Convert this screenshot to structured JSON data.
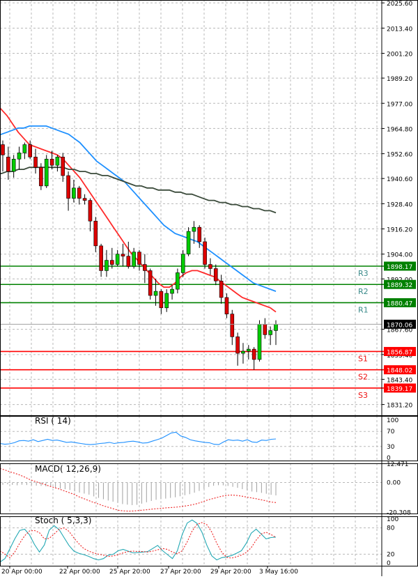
{
  "chart_data": {
    "type": "candlestick",
    "price_axis": {
      "ticks": [
        "2025.60",
        "2013.40",
        "2001.20",
        "1989.20",
        "1977.00",
        "1964.80",
        "1952.60",
        "1940.60",
        "1928.40",
        "1916.20",
        "1904.00",
        "1892.00",
        "1867.60",
        "1855.40",
        "1843.40",
        "1831.20"
      ],
      "ylim": [
        1826,
        2027
      ],
      "current_price": "1870.06",
      "current_value": 1870.06
    },
    "time_axis": {
      "labels": [
        "20 Apr 00:00",
        "22 Apr 00:00",
        "25 Apr 20:00",
        "27 Apr 20:00",
        "29 Apr 20:00",
        "3 May 16:00"
      ]
    },
    "levels": [
      {
        "name": "R3",
        "value": 1898.17,
        "label": "1898.17",
        "type": "resistance",
        "color": "#008000"
      },
      {
        "name": "R2",
        "value": 1889.32,
        "label": "1889.32",
        "type": "resistance",
        "color": "#008000"
      },
      {
        "name": "R1",
        "value": 1880.47,
        "label": "1880.47",
        "type": "resistance",
        "color": "#008000"
      },
      {
        "name": "S1",
        "value": 1856.87,
        "label": "1856.87",
        "type": "support",
        "color": "#ff0000"
      },
      {
        "name": "S2",
        "value": 1848.02,
        "label": "1848.02",
        "type": "support",
        "color": "#ff0000"
      },
      {
        "name": "S3",
        "value": 1839.17,
        "label": "1839.17",
        "type": "support",
        "color": "#ff0000"
      }
    ],
    "candles": [
      [
        1957,
        1959,
        1944,
        1952
      ],
      [
        1951,
        1956,
        1940,
        1944
      ],
      [
        1944,
        1952,
        1941,
        1950
      ],
      [
        1950,
        1956,
        1945,
        1953
      ],
      [
        1953,
        1958,
        1950,
        1957
      ],
      [
        1957,
        1959,
        1950,
        1951
      ],
      [
        1951,
        1955,
        1943,
        1946
      ],
      [
        1946,
        1948,
        1935,
        1937
      ],
      [
        1937,
        1952,
        1936,
        1950
      ],
      [
        1950,
        1954,
        1945,
        1947
      ],
      [
        1947,
        1952,
        1944,
        1951
      ],
      [
        1951,
        1953,
        1939,
        1942
      ],
      [
        1942,
        1944,
        1925,
        1931
      ],
      [
        1931,
        1940,
        1929,
        1936
      ],
      [
        1936,
        1937,
        1928,
        1931
      ],
      [
        1931,
        1933,
        1928,
        1930
      ],
      [
        1930,
        1931,
        1915,
        1920
      ],
      [
        1920,
        1922,
        1905,
        1908
      ],
      [
        1908,
        1909,
        1893,
        1896
      ],
      [
        1896,
        1906,
        1893,
        1901
      ],
      [
        1901,
        1907,
        1897,
        1899
      ],
      [
        1899,
        1906,
        1898,
        1904
      ],
      [
        1904,
        1909,
        1898,
        1903
      ],
      [
        1903,
        1910,
        1897,
        1898
      ],
      [
        1898,
        1907,
        1897,
        1905
      ],
      [
        1905,
        1906,
        1896,
        1899
      ],
      [
        1899,
        1904,
        1890,
        1896
      ],
      [
        1896,
        1897,
        1882,
        1884
      ],
      [
        1884,
        1892,
        1879,
        1886
      ],
      [
        1886,
        1887,
        1875,
        1878
      ],
      [
        1878,
        1887,
        1876,
        1885
      ],
      [
        1885,
        1889,
        1882,
        1887
      ],
      [
        1887,
        1897,
        1885,
        1895
      ],
      [
        1895,
        1906,
        1893,
        1904
      ],
      [
        1904,
        1917,
        1903,
        1915
      ],
      [
        1915,
        1920,
        1909,
        1917
      ],
      [
        1917,
        1918,
        1907,
        1910
      ],
      [
        1910,
        1912,
        1897,
        1899
      ],
      [
        1899,
        1902,
        1894,
        1897
      ],
      [
        1897,
        1899,
        1889,
        1891
      ],
      [
        1891,
        1894,
        1880,
        1883
      ],
      [
        1883,
        1885,
        1873,
        1875
      ],
      [
        1875,
        1877,
        1860,
        1864
      ],
      [
        1864,
        1866,
        1850,
        1856
      ],
      [
        1856,
        1861,
        1851,
        1857
      ],
      [
        1857,
        1860,
        1853,
        1858
      ],
      [
        1858,
        1859,
        1848,
        1853
      ],
      [
        1853,
        1872,
        1852,
        1870
      ],
      [
        1870,
        1873,
        1863,
        1865
      ],
      [
        1865,
        1869,
        1860,
        1867
      ],
      [
        1867,
        1872,
        1860,
        1870
      ]
    ],
    "moving_averages": [
      {
        "color": "#ff2a2a",
        "values": [
          1977,
          1974,
          1971,
          1967,
          1963,
          1960,
          1957,
          1956,
          1955,
          1954,
          1953,
          1952,
          1950,
          1947,
          1944,
          1941,
          1937,
          1933,
          1929,
          1925,
          1921,
          1917,
          1913,
          1909,
          1905,
          1902,
          1899,
          1896,
          1893,
          1890,
          1888,
          1888,
          1890,
          1893,
          1895,
          1896,
          1896,
          1895,
          1894,
          1893,
          1891,
          1889,
          1887,
          1885,
          1883,
          1882,
          1881,
          1880,
          1879,
          1878,
          1876
        ]
      },
      {
        "color": "#1e90ff",
        "values": [
          1961,
          1962,
          1963,
          1964,
          1965,
          1965,
          1966,
          1966,
          1966,
          1966,
          1965,
          1964,
          1963,
          1962,
          1960,
          1958,
          1955,
          1952,
          1949,
          1947,
          1945,
          1943,
          1941,
          1939,
          1936,
          1933,
          1930,
          1927,
          1924,
          1921,
          1918,
          1916,
          1914,
          1913,
          1912,
          1911,
          1910,
          1908,
          1906,
          1904,
          1902,
          1900,
          1898,
          1896,
          1894,
          1892,
          1890,
          1889,
          1888,
          1887,
          1886
        ]
      },
      {
        "color": "#3a4a3a",
        "values": [
          1943,
          1943,
          1944,
          1944,
          1945,
          1945,
          1946,
          1946,
          1946,
          1946,
          1946,
          1946,
          1946,
          1945,
          1945,
          1944,
          1944,
          1943,
          1943,
          1942,
          1942,
          1941,
          1940,
          1939,
          1938,
          1937,
          1937,
          1936,
          1936,
          1935,
          1935,
          1935,
          1934,
          1934,
          1933,
          1933,
          1932,
          1931,
          1930,
          1930,
          1929,
          1929,
          1928,
          1928,
          1927,
          1927,
          1926,
          1926,
          1925,
          1925,
          1924
        ]
      }
    ],
    "rsi": {
      "label": "RSI ( 14)",
      "ticks": [
        "100",
        "70",
        "30",
        "0"
      ],
      "ylim": [
        0,
        100
      ],
      "values": [
        38,
        36,
        37,
        40,
        45,
        46,
        44,
        48,
        43,
        46,
        49,
        46,
        47,
        44,
        41,
        42,
        40,
        38,
        36,
        35,
        36,
        38,
        39,
        41,
        38,
        40,
        41,
        43,
        44,
        42,
        39,
        40,
        44,
        48,
        52,
        59,
        66,
        68,
        58,
        54,
        48,
        45,
        43,
        41,
        40,
        36,
        35,
        42,
        48,
        46,
        47,
        44,
        48,
        42,
        41,
        47,
        46,
        49,
        50
      ]
    },
    "macd": {
      "label": "MACD( 12,26,9)",
      "ticks": [
        "12.471",
        "0.00",
        "-20.308"
      ],
      "ylim": [
        -21,
        13
      ],
      "histogram": [
        -1.5,
        -1.2,
        -1.6,
        -1.9,
        -1.5,
        -1.7,
        -1.8,
        -2.1,
        -2.3,
        -2.6,
        -2.9,
        -3.5,
        -4.2,
        -4.5,
        -5.1,
        -6.0,
        -6.8,
        -7.5,
        -8.2,
        -9.4,
        -10.4,
        -11.3,
        -12.2,
        -13.0,
        -13.7,
        -14.6,
        -15.0,
        -15.3,
        -15.1,
        -14.3,
        -13.4,
        -12.5,
        -11.7,
        -11.3,
        -10.9,
        -10.4,
        -10.0,
        -9.3,
        -8.6,
        -7.9,
        -6.9,
        -5.7,
        -4.3,
        -3.0,
        -2.2,
        -1.8,
        -1.9,
        -2.3,
        -2.9,
        -3.6,
        -4.5,
        -5.4,
        -6.1,
        -6.5,
        -7.0,
        -7.6,
        -8.3,
        -8.7
      ],
      "signal": [
        9.5,
        8.5,
        7.3,
        6.3,
        5.1,
        3.7,
        2.1,
        0.9,
        -0.2,
        -1.2,
        -2.4,
        -3.4,
        -4.4,
        -5.6,
        -6.8,
        -8.0,
        -9.6,
        -10.9,
        -12.2,
        -13.5,
        -14.6,
        -15.8,
        -16.8,
        -17.8,
        -18.8,
        -19.2,
        -19.4,
        -19.3,
        -19.0,
        -18.7,
        -18.4,
        -18.0,
        -17.7,
        -17.4,
        -17.1,
        -16.9,
        -16.6,
        -16.2,
        -15.7,
        -15.1,
        -14.3,
        -13.2,
        -12.0,
        -11.1,
        -10.2,
        -9.3,
        -8.7,
        -8.5,
        -8.7,
        -9.2,
        -9.8,
        -10.4,
        -11.0,
        -11.7,
        -12.4,
        -13.2,
        -13.6
      ]
    },
    "stochastic": {
      "label": "Stoch ( 5,3,3)",
      "ticks": [
        "100",
        "80",
        "20",
        "0"
      ],
      "ylim": [
        0,
        100
      ],
      "k": [
        2,
        10,
        32,
        55,
        74,
        77,
        64,
        42,
        25,
        41,
        75,
        85,
        76,
        58,
        40,
        27,
        22,
        19,
        15,
        10,
        7,
        10,
        18,
        20,
        28,
        31,
        27,
        23,
        24,
        25,
        26,
        33,
        40,
        28,
        19,
        10,
        28,
        65,
        91,
        98,
        90,
        70,
        40,
        16,
        7,
        12,
        14,
        17,
        22,
        28,
        45,
        68,
        77,
        66,
        55,
        58,
        59
      ],
      "d": [
        28,
        20,
        12,
        25,
        45,
        62,
        73,
        74,
        69,
        55,
        56,
        66,
        77,
        80,
        72,
        57,
        44,
        33,
        27,
        23,
        20,
        18,
        15,
        16,
        19,
        23,
        26,
        27,
        26,
        26,
        25,
        27,
        30,
        33,
        31,
        25,
        21,
        28,
        48,
        73,
        88,
        92,
        87,
        70,
        45,
        25,
        13,
        11,
        14,
        18,
        24,
        35,
        52,
        66,
        70,
        65,
        58
      ]
    }
  }
}
